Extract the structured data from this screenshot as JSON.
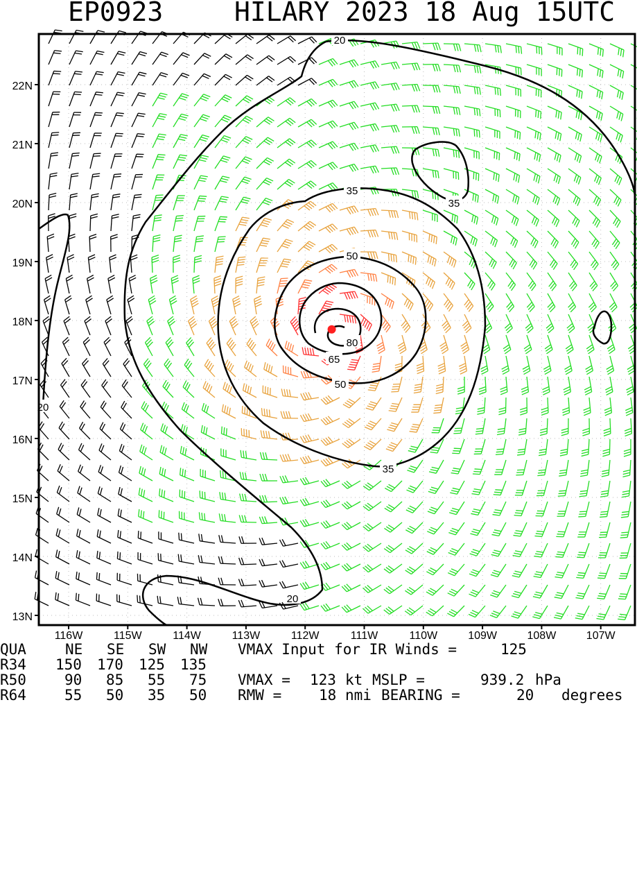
{
  "title": {
    "storm_id": "EP0923",
    "storm_header": "HILARY 2023 18 Aug 15UTC"
  },
  "map": {
    "lat_labels": [
      "22N",
      "21N",
      "20N",
      "19N",
      "18N",
      "17N",
      "16N",
      "15N",
      "14N",
      "13N"
    ],
    "lon_labels": [
      "116W",
      "115W",
      "114W",
      "113W",
      "112W",
      "111W",
      "110W",
      "109W",
      "108W",
      "107W"
    ],
    "contour_labels": [
      "20",
      "35",
      "35",
      "50",
      "65",
      "80",
      "50",
      "35",
      "20",
      "20"
    ],
    "center": {
      "lat": 17.85,
      "lon": 111.55,
      "color": "#ff2020"
    },
    "wind_colors": {
      "below_34kt": "#000000",
      "34_to_49kt": "#22dd22",
      "50_to_63kt": "#e8a23c",
      "64_to_79kt": "#ff7f40",
      "80_plus_kt": "#ff3030"
    }
  },
  "footer": {
    "vmax_input_label": "VMAX Input for IR Winds =",
    "vmax_input_value": "125",
    "quadrant_header": {
      "label": "QUA",
      "cols": [
        "NE",
        "SE",
        "SW",
        "NW"
      ]
    },
    "radii": [
      {
        "label": "R34",
        "values": [
          "150",
          "170",
          "125",
          "135"
        ]
      },
      {
        "label": "R50",
        "values": [
          "90",
          "85",
          "55",
          "75"
        ]
      },
      {
        "label": "R64",
        "values": [
          "55",
          "50",
          "35",
          "50"
        ]
      }
    ],
    "vmax_label": "VMAX =",
    "vmax_value": "123",
    "vmax_unit": "kt",
    "mslp_label": "MSLP =",
    "mslp_value": "939.2",
    "mslp_unit": "hPa",
    "rmw_label": "RMW =",
    "rmw_value": "18",
    "rmw_unit": "nmi",
    "bearing_label": "BEARING =",
    "bearing_value": "20",
    "bearing_unit": "degrees"
  }
}
